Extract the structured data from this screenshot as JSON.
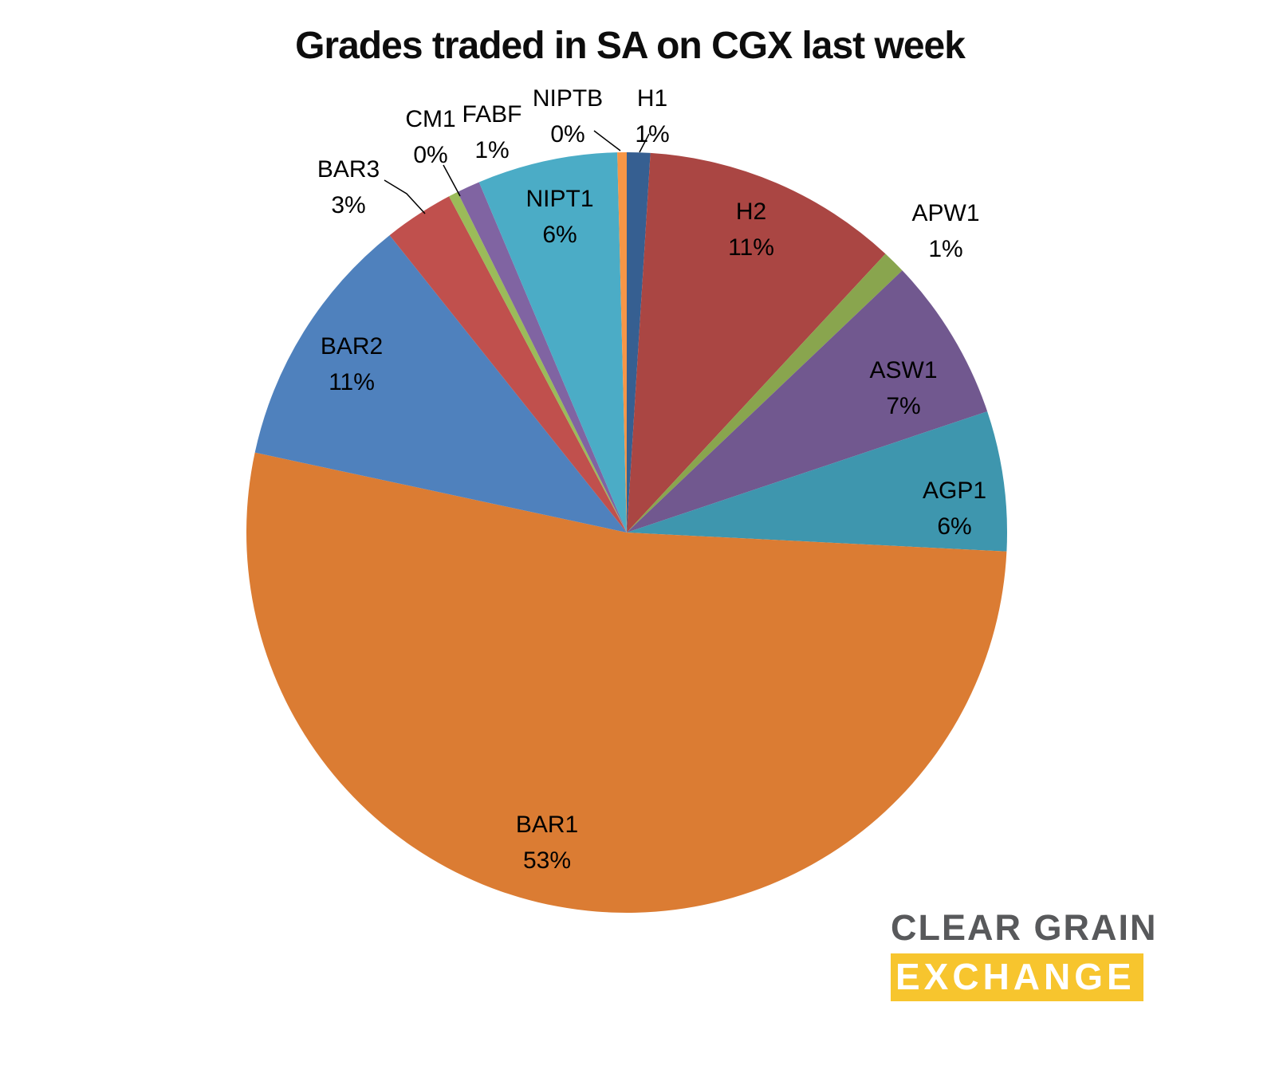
{
  "title": "Grades traded in SA on CGX last week",
  "chart_data": {
    "type": "pie",
    "title": "Grades traded in SA on CGX last week",
    "legend": "none",
    "label_style": "category name and percentage, outside or inside slice",
    "start_angle_deg": 0,
    "direction": "clockwise",
    "slices": [
      {
        "name": "H1",
        "pct": "1%",
        "value": 1,
        "color": "#365f91"
      },
      {
        "name": "H2",
        "pct": "11%",
        "value": 11,
        "color": "#aa4643"
      },
      {
        "name": "APW1",
        "pct": "1%",
        "value": 1,
        "color": "#89a54e"
      },
      {
        "name": "ASW1",
        "pct": "7%",
        "value": 7,
        "color": "#71588f"
      },
      {
        "name": "AGP1",
        "pct": "6%",
        "value": 6,
        "color": "#3e96ae"
      },
      {
        "name": "BAR1",
        "pct": "53%",
        "value": 53,
        "color": "#db7c33"
      },
      {
        "name": "BAR2",
        "pct": "11%",
        "value": 11,
        "color": "#4f81bd"
      },
      {
        "name": "BAR3",
        "pct": "3%",
        "value": 3,
        "color": "#c0504d"
      },
      {
        "name": "CM1",
        "pct": "0%",
        "value": 0.4,
        "color": "#9bbb59"
      },
      {
        "name": "FABF",
        "pct": "1%",
        "value": 1,
        "color": "#8064a2"
      },
      {
        "name": "NIPT1",
        "pct": "6%",
        "value": 6,
        "color": "#4bacc6"
      },
      {
        "name": "NIPTB",
        "pct": "0%",
        "value": 0.4,
        "color": "#f79646"
      }
    ]
  },
  "logo": {
    "line1": "CLEAR GRAIN",
    "line2": "EXCHANGE",
    "accent_color": "#f7c52e",
    "text_color": "#58595b"
  }
}
